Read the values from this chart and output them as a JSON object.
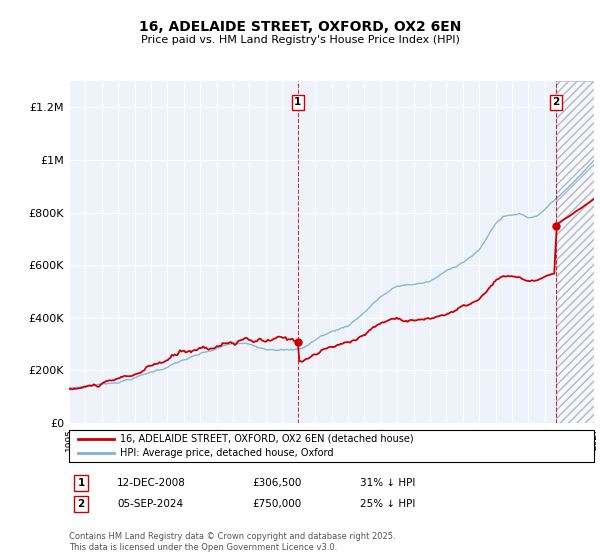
{
  "title": "16, ADELAIDE STREET, OXFORD, OX2 6EN",
  "subtitle": "Price paid vs. HM Land Registry's House Price Index (HPI)",
  "ylabel_ticks": [
    "£0",
    "£200K",
    "£400K",
    "£600K",
    "£800K",
    "£1M",
    "£1.2M"
  ],
  "ytick_values": [
    0,
    200000,
    400000,
    600000,
    800000,
    1000000,
    1200000
  ],
  "ylim": [
    0,
    1300000
  ],
  "xlim_start": 1995,
  "xlim_end": 2027,
  "hpi_color": "#7ab3d4",
  "price_color": "#cc0000",
  "transaction1_price": 306500,
  "transaction1_date": "12-DEC-2008",
  "transaction1_label": "31% ↓ HPI",
  "transaction2_price": 750000,
  "transaction2_date": "05-SEP-2024",
  "transaction2_label": "25% ↓ HPI",
  "transaction1_x": 2008.95,
  "transaction2_x": 2024.67,
  "legend_label1": "16, ADELAIDE STREET, OXFORD, OX2 6EN (detached house)",
  "legend_label2": "HPI: Average price, detached house, Oxford",
  "footnote": "Contains HM Land Registry data © Crown copyright and database right 2025.\nThis data is licensed under the Open Government Licence v3.0.",
  "plot_bg_color": "#eef2fb",
  "hatch_color": "#c8c8c8"
}
